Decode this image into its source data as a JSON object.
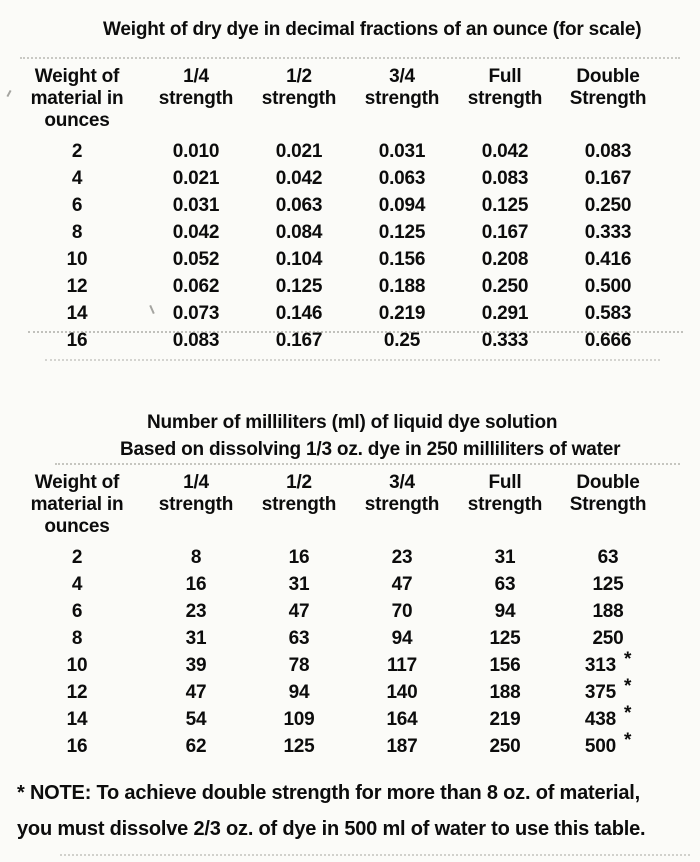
{
  "page": {
    "background_color": "#fbfbf8",
    "text_color": "#0c0c0c"
  },
  "dry_dye_table": {
    "title": "Weight of dry dye in decimal fractions of an ounce (for scale)",
    "headers": [
      [
        "Weight of",
        "material in",
        "ounces"
      ],
      [
        "1/4",
        "strength"
      ],
      [
        "1/2",
        "strength"
      ],
      [
        "3/4",
        "strength"
      ],
      [
        "Full",
        "strength"
      ],
      [
        "Double",
        "Strength"
      ]
    ],
    "rows": [
      [
        "2",
        "0.010",
        "0.021",
        "0.031",
        "0.042",
        "0.083"
      ],
      [
        "4",
        "0.021",
        "0.042",
        "0.063",
        "0.083",
        "0.167"
      ],
      [
        "6",
        "0.031",
        "0.063",
        "0.094",
        "0.125",
        "0.250"
      ],
      [
        "8",
        "0.042",
        "0.084",
        "0.125",
        "0.167",
        "0.333"
      ],
      [
        "10",
        "0.052",
        "0.104",
        "0.156",
        "0.208",
        "0.416"
      ],
      [
        "12",
        "0.062",
        "0.125",
        "0.188",
        "0.250",
        "0.500"
      ],
      [
        "14",
        "0.073",
        "0.146",
        "0.219",
        "0.291",
        "0.583"
      ],
      [
        "16",
        "0.083",
        "0.167",
        "0.25",
        "0.333",
        "0.666"
      ]
    ]
  },
  "liquid_dye_table": {
    "title": "Number of milliliters (ml) of liquid dye solution",
    "subtitle": "Based on dissolving 1/3 oz. dye in 250 milliliters of water",
    "headers": [
      [
        "Weight of",
        "material in",
        "ounces"
      ],
      [
        "1/4",
        "strength"
      ],
      [
        "1/2",
        "strength"
      ],
      [
        "3/4",
        "strength"
      ],
      [
        "Full",
        "strength"
      ],
      [
        "Double",
        "Strength"
      ]
    ],
    "rows": [
      [
        "2",
        "8",
        "16",
        "23",
        "31",
        "63"
      ],
      [
        "4",
        "16",
        "31",
        "47",
        "63",
        "125"
      ],
      [
        "6",
        "23",
        "47",
        "70",
        "94",
        "188"
      ],
      [
        "8",
        "31",
        "63",
        "94",
        "125",
        "250"
      ],
      [
        "10",
        "39",
        "78",
        "117",
        "156",
        {
          "value": "313",
          "asterisk": true
        }
      ],
      [
        "12",
        "47",
        "94",
        "140",
        "188",
        {
          "value": "375",
          "asterisk": true
        }
      ],
      [
        "14",
        "54",
        "109",
        "164",
        "219",
        {
          "value": "438",
          "asterisk": true
        }
      ],
      [
        "16",
        "62",
        "125",
        "187",
        "250",
        {
          "value": "500",
          "asterisk": true
        }
      ]
    ]
  },
  "footnote": {
    "line1": "* NOTE: To achieve double strength for more than 8 oz. of material,",
    "line2": "you must dissolve 2/3 oz. of dye in 500 ml of water to use this table."
  }
}
